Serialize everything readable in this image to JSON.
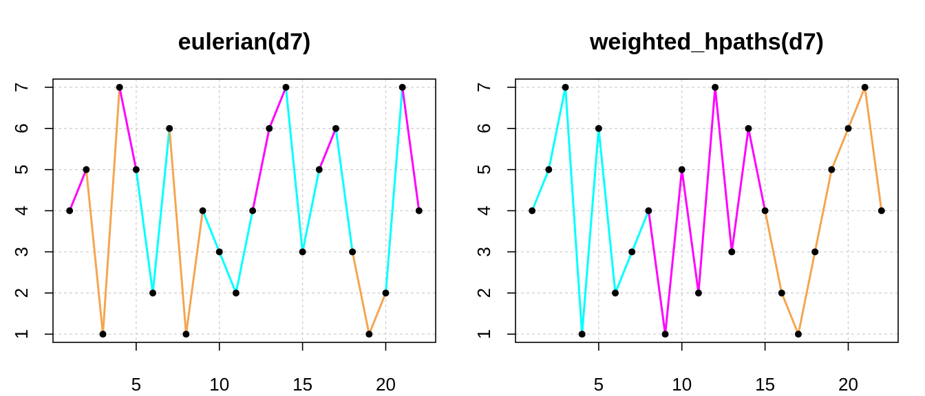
{
  "chart_data": [
    {
      "type": "line",
      "title": "eulerian(d7)",
      "xlabel": "",
      "ylabel": "",
      "x": [
        1,
        2,
        3,
        4,
        5,
        6,
        7,
        8,
        9,
        10,
        11,
        12,
        13,
        14,
        15,
        16,
        17,
        18,
        19,
        20,
        21,
        22
      ],
      "y": [
        4,
        5,
        1,
        7,
        5,
        2,
        6,
        1,
        4,
        3,
        2,
        4,
        6,
        7,
        3,
        5,
        6,
        3,
        1,
        2,
        7,
        4
      ],
      "segment_colors": [
        "magenta",
        "orange",
        "orange",
        "magenta",
        "cyan",
        "cyan",
        "orange",
        "orange",
        "cyan",
        "cyan",
        "cyan",
        "magenta",
        "magenta",
        "cyan",
        "cyan",
        "magenta",
        "cyan",
        "orange",
        "orange",
        "cyan",
        "magenta"
      ],
      "xlim": [
        0,
        23
      ],
      "ylim": [
        0.8,
        7.2
      ],
      "xticks": [
        5,
        10,
        15,
        20
      ],
      "yticks": [
        1,
        2,
        3,
        4,
        5,
        6,
        7
      ],
      "grid": true
    },
    {
      "type": "line",
      "title": "weighted_hpaths(d7)",
      "xlabel": "",
      "ylabel": "",
      "x": [
        1,
        2,
        3,
        4,
        5,
        6,
        7,
        8,
        9,
        10,
        11,
        12,
        13,
        14,
        15,
        16,
        17,
        18,
        19,
        20,
        21,
        22
      ],
      "y": [
        4,
        5,
        7,
        1,
        6,
        2,
        3,
        4,
        1,
        5,
        2,
        7,
        3,
        6,
        4,
        2,
        1,
        3,
        5,
        6,
        7,
        4
      ],
      "segment_colors": [
        "cyan",
        "cyan",
        "cyan",
        "cyan",
        "cyan",
        "cyan",
        "cyan",
        "magenta",
        "magenta",
        "magenta",
        "magenta",
        "magenta",
        "magenta",
        "magenta",
        "orange",
        "orange",
        "orange",
        "orange",
        "orange",
        "orange",
        "orange"
      ],
      "xlim": [
        0,
        23
      ],
      "ylim": [
        0.8,
        7.2
      ],
      "xticks": [
        5,
        10,
        15,
        20
      ],
      "yticks": [
        1,
        2,
        3,
        4,
        5,
        6,
        7
      ],
      "grid": true
    }
  ],
  "colors": {
    "cyan": "#00FFFF",
    "magenta": "#FF00FF",
    "orange": "#F5A54F",
    "grid": "#CFCFCF",
    "point": "#000000",
    "axis": "#000000"
  }
}
